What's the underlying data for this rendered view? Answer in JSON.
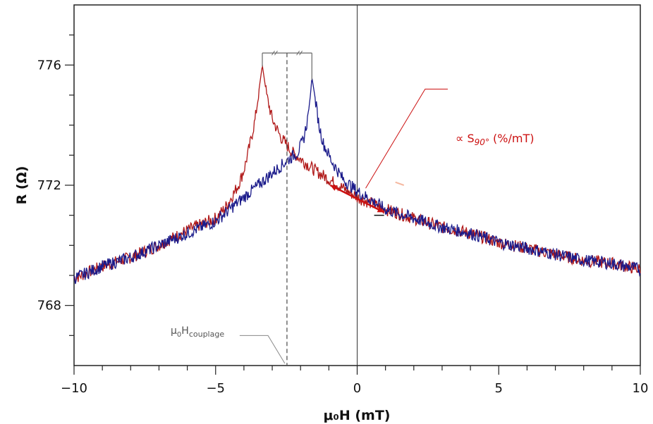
{
  "chart_data": {
    "type": "line",
    "xlabel": "μ₀H (mT)",
    "ylabel": "R (Ω)",
    "xlim": [
      -10,
      10
    ],
    "ylim": [
      766.0,
      778.0
    ],
    "x_ticks": [
      -10,
      -5,
      0,
      5,
      10
    ],
    "x_tick_labels": [
      "−10",
      "−5",
      "0",
      "5",
      "10"
    ],
    "y_ticks": [
      768,
      772,
      776
    ],
    "y_tick_labels": [
      "768",
      "772",
      "776"
    ],
    "grid": false,
    "series": [
      {
        "color": "#b01818",
        "peak_x": -3.35,
        "points": [
          [
            -10,
            768.9
          ],
          [
            -9,
            769.3
          ],
          [
            -8,
            769.6
          ],
          [
            -7,
            770.0
          ],
          [
            -6,
            770.5
          ],
          [
            -5,
            770.9
          ],
          [
            -4.7,
            771.2
          ],
          [
            -4.5,
            771.5
          ],
          [
            -4.2,
            772.0
          ],
          [
            -4.0,
            772.5
          ],
          [
            -3.8,
            773.3
          ],
          [
            -3.6,
            774.2
          ],
          [
            -3.45,
            775.3
          ],
          [
            -3.35,
            776.0
          ],
          [
            -3.2,
            775.0
          ],
          [
            -3.0,
            774.2
          ],
          [
            -2.7,
            773.6
          ],
          [
            -2.3,
            773.1
          ],
          [
            -1.9,
            772.8
          ],
          [
            -1.5,
            772.5
          ],
          [
            -1.0,
            772.2
          ],
          [
            -0.5,
            771.9
          ],
          [
            0,
            771.6
          ],
          [
            0.5,
            771.4
          ],
          [
            1,
            771.2
          ],
          [
            2,
            770.9
          ],
          [
            3,
            770.6
          ],
          [
            4,
            770.4
          ],
          [
            5,
            770.1
          ],
          [
            6,
            769.9
          ],
          [
            7,
            769.7
          ],
          [
            8,
            769.5
          ],
          [
            9,
            769.4
          ],
          [
            10,
            769.2
          ]
        ]
      },
      {
        "color": "#1a1a8a",
        "peak_x": -1.6,
        "points": [
          [
            -10,
            768.9
          ],
          [
            -9,
            769.3
          ],
          [
            -8,
            769.6
          ],
          [
            -7,
            770.0
          ],
          [
            -6,
            770.4
          ],
          [
            -5,
            770.8
          ],
          [
            -4.5,
            771.2
          ],
          [
            -4,
            771.6
          ],
          [
            -3.5,
            772.0
          ],
          [
            -3,
            772.4
          ],
          [
            -2.5,
            772.8
          ],
          [
            -2.1,
            773.1
          ],
          [
            -1.9,
            773.5
          ],
          [
            -1.75,
            774.2
          ],
          [
            -1.65,
            775.0
          ],
          [
            -1.6,
            775.6
          ],
          [
            -1.5,
            775.0
          ],
          [
            -1.35,
            774.0
          ],
          [
            -1.2,
            773.4
          ],
          [
            -0.9,
            772.8
          ],
          [
            -0.5,
            772.2
          ],
          [
            0,
            771.8
          ],
          [
            0.5,
            771.5
          ],
          [
            1,
            771.2
          ],
          [
            2,
            770.9
          ],
          [
            3,
            770.6
          ],
          [
            4,
            770.4
          ],
          [
            5,
            770.1
          ],
          [
            6,
            769.9
          ],
          [
            7,
            769.7
          ],
          [
            8,
            769.5
          ],
          [
            9,
            769.4
          ],
          [
            10,
            769.2
          ]
        ]
      }
    ],
    "coupling_field_x": -2.48,
    "annotations": {
      "slope_label": "∝ S",
      "slope_label_sub": "90°",
      "slope_label_unit": " (%/mT)",
      "coupling_label_main": "μ",
      "coupling_label_sub0": "0",
      "coupling_label_H": "H",
      "coupling_label_sub": "couplage"
    },
    "colors": {
      "red_series": "#b01818",
      "blue_series": "#1a1a8a",
      "annotation_red": "#cc1111",
      "annotation_grey": "#666666"
    }
  }
}
